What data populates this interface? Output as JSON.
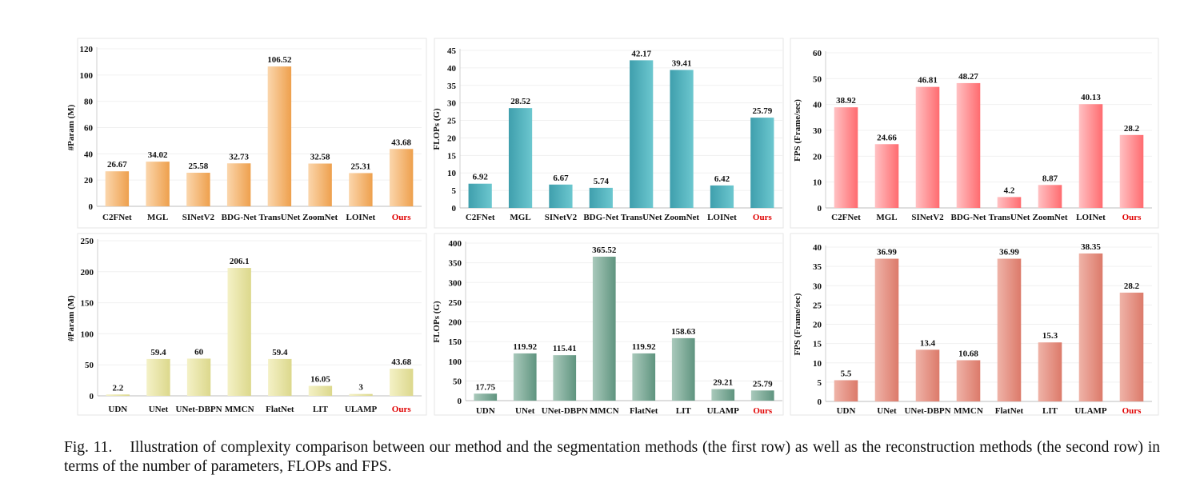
{
  "chart_data": [
    {
      "type": "bar",
      "categories": [
        "C2FNet",
        "MGL",
        "SINetV2",
        "BDG-Net",
        "TransUNet",
        "ZoomNet",
        "LOINet",
        "Ours"
      ],
      "values": [
        26.67,
        34.02,
        25.58,
        32.73,
        106.52,
        32.58,
        25.31,
        43.68
      ],
      "value_labels": [
        "26.67",
        "34.02",
        "25.58",
        "32.73",
        "106.52",
        "32.58",
        "25.31",
        "43.68"
      ],
      "ylabel": "#Param (M)",
      "ylim": [
        0,
        120
      ],
      "yticks": [
        0,
        20,
        40,
        60,
        80,
        100,
        120
      ],
      "highlight": "Ours",
      "bar_colors": [
        "#fbd6ac",
        "#eea04d"
      ]
    },
    {
      "type": "bar",
      "categories": [
        "C2FNet",
        "MGL",
        "SINetV2",
        "BDG-Net",
        "TransUNet",
        "ZoomNet",
        "LOINet",
        "Ours"
      ],
      "values": [
        6.92,
        28.52,
        6.67,
        5.74,
        42.17,
        39.41,
        6.42,
        25.79
      ],
      "value_labels": [
        "6.92",
        "28.52",
        "6.67",
        "5.74",
        "42.17",
        "39.41",
        "6.42",
        "25.79"
      ],
      "ylabel": "FLOPs (G)",
      "ylim": [
        0,
        45
      ],
      "yticks": [
        0,
        5,
        10,
        15,
        20,
        25,
        30,
        35,
        40,
        45
      ],
      "highlight": "Ours",
      "bar_colors": [
        "#3f9fad",
        "#6cc7cf"
      ]
    },
    {
      "type": "bar",
      "categories": [
        "C2FNet",
        "MGL",
        "SINetV2",
        "BDG-Net",
        "TransUNet",
        "ZoomNet",
        "LOINet",
        "Ours"
      ],
      "values": [
        38.92,
        24.66,
        46.81,
        48.27,
        4.2,
        8.87,
        40.13,
        28.2
      ],
      "value_labels": [
        "38.92",
        "24.66",
        "46.81",
        "48.27",
        "4.2",
        "8.87",
        "40.13",
        "28.2"
      ],
      "ylabel": "FPS (Frame/sec)",
      "ylim": [
        0,
        60
      ],
      "yticks": [
        0,
        10,
        20,
        30,
        40,
        50,
        60
      ],
      "highlight": "Ours",
      "bar_colors": [
        "#ffc1c3",
        "#ff6b6f"
      ]
    },
    {
      "type": "bar",
      "categories": [
        "UDN",
        "UNet",
        "UNet-DBPN",
        "MMCN",
        "FlatNet",
        "LIT",
        "ULAMP",
        "Ours"
      ],
      "values": [
        2.2,
        59.4,
        60,
        206.1,
        59.4,
        16.05,
        3,
        43.68
      ],
      "value_labels": [
        "2.2",
        "59.4",
        "60",
        "206.1",
        "59.4",
        "16.05",
        "3",
        "43.68"
      ],
      "ylabel": "#Param (M)",
      "ylim": [
        0,
        250
      ],
      "yticks": [
        0,
        50,
        100,
        150,
        200,
        250
      ],
      "highlight": "Ours",
      "bar_colors": [
        "#f4f1c6",
        "#dcd88c"
      ]
    },
    {
      "type": "bar",
      "categories": [
        "UDN",
        "UNet",
        "UNet-DBPN",
        "MMCN",
        "FlatNet",
        "LIT",
        "ULAMP",
        "Ours"
      ],
      "values": [
        17.75,
        119.92,
        115.41,
        365.52,
        119.92,
        158.63,
        29.21,
        25.79
      ],
      "value_labels": [
        "17.75",
        "119.92",
        "115.41",
        "365.52",
        "119.92",
        "158.63",
        "29.21",
        "25.79"
      ],
      "ylabel": "FLOPs (G)",
      "ylim": [
        0,
        400
      ],
      "yticks": [
        0,
        50,
        100,
        150,
        200,
        250,
        300,
        350,
        400
      ],
      "highlight": "Ours",
      "bar_colors": [
        "#a9c9bb",
        "#5f947f"
      ]
    },
    {
      "type": "bar",
      "categories": [
        "UDN",
        "UNet",
        "UNet-DBPN",
        "MMCN",
        "FlatNet",
        "LIT",
        "ULAMP",
        "Ours"
      ],
      "values": [
        5.5,
        36.99,
        13.4,
        10.68,
        36.99,
        15.3,
        38.35,
        28.2
      ],
      "value_labels": [
        "5.5",
        "36.99",
        "13.4",
        "10.68",
        "36.99",
        "15.3",
        "38.35",
        "28.2"
      ],
      "ylabel": "FPS (Frame/sec)",
      "ylim": [
        0,
        40
      ],
      "yticks": [
        0,
        5,
        10,
        15,
        20,
        25,
        30,
        35,
        40
      ],
      "highlight": "Ours",
      "bar_colors": [
        "#efb3a8",
        "#dc7a6a"
      ]
    }
  ],
  "caption": {
    "label": "Fig. 11.",
    "text": "Illustration of complexity comparison between our method and the segmentation methods (the first row) as well as the reconstruction methods (the second row) in terms of the number of parameters, FLOPs and FPS."
  },
  "colors": {
    "highlight_label": "#e00000",
    "panel_border": "#e6e6e6",
    "text": "#111111"
  }
}
